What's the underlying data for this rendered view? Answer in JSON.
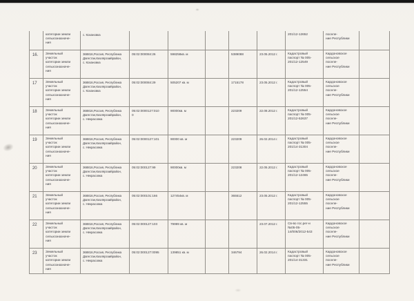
{
  "page": {
    "background_color": "#f5f2ec",
    "scanner_strip_color": "#161616",
    "table_line_color": "#918e88",
    "text_color": "#3f3f46"
  },
  "table": {
    "rows": [
      {
        "cells": [
          "",
          "категории земли\nсельхозназначе-\nния",
          "с. Кохановка",
          "",
          "",
          "",
          "",
          "",
          "201/12-12652",
          "поселе-\nние Республики",
          ""
        ]
      },
      {
        "cells": [
          "16.",
          "Земельный\nучасток\nкатегории земли\nсельхозназначе-\nния",
          "368816,Россия, Республика\nДагестан,Кизлярскийрайон,\nс. Кохановка",
          "05:02:000084:26",
          "598258кв. м",
          "",
          "5389088",
          "23.05.2012 г.",
          "Кадастровый\nпаспорт № 005-\n201/12-12549",
          "Кардоновское\nсельское\nпоселе-\nние Республики",
          ""
        ]
      },
      {
        "cells": [
          "17",
          "Земельный\nучасток\nкатегории земли\nсельхозназначе-\nния",
          "368816,Россия, Республика\nДагестан,Кизлярскийрайон,\nс. Кохановка",
          "05:02:000084:29",
          "505207 кв. м",
          "",
          "1715178",
          "23.05.2012 г.",
          "Кадастровый\nпаспорт № 005-\n201/12-12554",
          "Кардоновское\nсельское\nпоселе-\nние Республики",
          ""
        ]
      },
      {
        "cells": [
          "18",
          "Земельный\nучасток\nкатегории земли\nсельхозназначе-\nния",
          "368816,Россия, Республика\nДагестан,Кизлярскийрайон,\nс. Некрасовка",
          "05:02:0000127:010\n0",
          "90000кв. м",
          "",
          "223209",
          "22.08.2012 г.",
          "Кадастровый\nпаспорт № 005-\n201/12-52637",
          "Кардоновское\nсельское\nпоселе-\nние Республики",
          ""
        ]
      },
      {
        "cells": [
          "19",
          "Земельный\nучасток\nкатегории земли\nсельхозназначе-\nния",
          "368816,Россия, Республика\nДагестан,Кизлярскийрайон,\nс. Некрасовка",
          "05:02:0000127:101",
          "90000 кв. м",
          "",
          "223209",
          "26.02.2014 г.",
          "Кадастровый\nпаспорт № 005-\n201/14-31304",
          "Кардоновское\nсельское\nпоселе-\nние Республики",
          ""
        ]
      },
      {
        "cells": [
          "20",
          "Земельный\nучасток\nкатегории земли\nсельхозназначе-\nния",
          "368816,Россия, Республика\nДагестан,Кизлярскийрайон,\nс. Некрасовка",
          "05:02:000127:99",
          "90000кв. м",
          "",
          "223208",
          "22.05.2012 г.",
          "Кадастровый\nпаспорт № 005-\n201/12-12465",
          "Кардоновское\nсельское\nпоселе-\nние Республики",
          ""
        ]
      },
      {
        "cells": [
          "21",
          "Земельный\nучасток\nкатегории земли\nсельхозназначе-\nния",
          "368816,Россия, Республика\nДагестан,Кизлярскийрайон,\nс. Некрасовка",
          "05:02:000101:166",
          "127454кв. м",
          "",
          "365512",
          "23.05.2012 г.",
          "Кадастровый\nпаспорт № 005-\n201/12-12555",
          "Кардоновское\nсельское\nпоселе-\nние Республики",
          ""
        ]
      },
      {
        "cells": [
          "22",
          "Земельный\nучасток\nкатегории земли\nсельхозназначе-\nния",
          "368816,Россия, Республика\nДагестан,Кизлярскийрайон,\nс. Некрасовка",
          "05:02:000127:103",
          "79999 кв. м",
          "",
          "",
          "23.07.2012 г.",
          "Св-во гос.рег-и\n№05-05-\n14/006/2012-543",
          "Кардоновское\nсельское\nпоселе-\nние Республики",
          ""
        ]
      },
      {
        "cells": [
          "23",
          "Земельный\nучасток\nкатегории земли\nсельхозназначе-\nния",
          "368816,Россия, Республика\nДагестан,Кизлярскийрайон,\nс. Некрасовка",
          "05:02:000127:0095",
          "139851 кв. м",
          "",
          "346794",
          "26.02.2014 г.",
          "Кадастровый\nпаспорт № 005-\n201/14-31331",
          "Кардоновское\nсельское\nпоселе-\nние Республики",
          ""
        ]
      }
    ]
  }
}
